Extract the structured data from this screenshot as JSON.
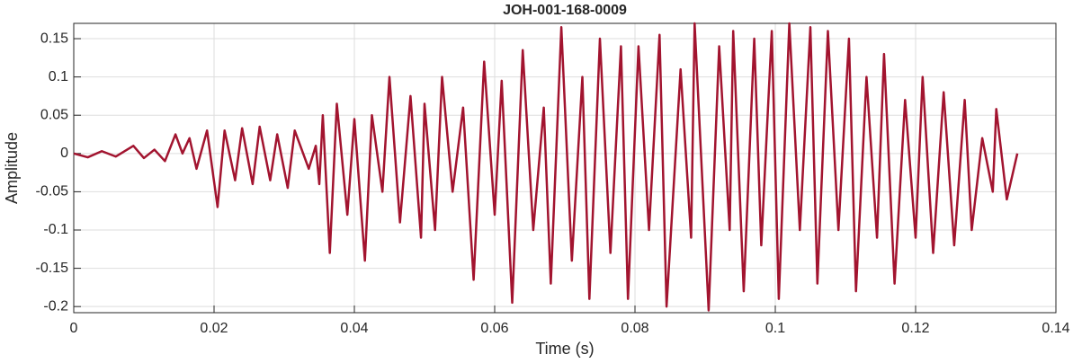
{
  "chart_data": {
    "type": "line",
    "title": "JOH-001-168-0009",
    "x_label": "Time (s)",
    "y_label": "Amplitude",
    "x": [
      0,
      0.002,
      0.004,
      0.006,
      0.0085,
      0.01,
      0.0115,
      0.013,
      0.0145,
      0.0155,
      0.0165,
      0.0175,
      0.019,
      0.0205,
      0.0215,
      0.023,
      0.024,
      0.0255,
      0.0265,
      0.028,
      0.029,
      0.0305,
      0.0315,
      0.0335,
      0.0345,
      0.035,
      0.0355,
      0.0365,
      0.0375,
      0.039,
      0.04,
      0.0415,
      0.0425,
      0.044,
      0.045,
      0.0465,
      0.048,
      0.0495,
      0.05,
      0.0515,
      0.0525,
      0.054,
      0.0555,
      0.057,
      0.0585,
      0.06,
      0.061,
      0.0625,
      0.064,
      0.0655,
      0.067,
      0.068,
      0.0695,
      0.071,
      0.0725,
      0.0735,
      0.075,
      0.0765,
      0.078,
      0.079,
      0.0805,
      0.082,
      0.0835,
      0.0845,
      0.0865,
      0.088,
      0.0885,
      0.0905,
      0.092,
      0.0935,
      0.094,
      0.0955,
      0.097,
      0.098,
      0.0995,
      0.1005,
      0.102,
      0.1035,
      0.105,
      0.106,
      0.1075,
      0.109,
      0.1105,
      0.1115,
      0.113,
      0.1145,
      0.1155,
      0.117,
      0.1185,
      0.12,
      0.121,
      0.1225,
      0.124,
      0.1255,
      0.127,
      0.128,
      0.1295,
      0.131,
      0.1315,
      0.133,
      0.134,
      0.1345
    ],
    "series": [
      {
        "name": "Amplitude",
        "color": "#a2142f",
        "values": [
          0,
          -0.005,
          0.003,
          -0.004,
          0.01,
          -0.006,
          0.005,
          -0.01,
          0.025,
          0,
          0.02,
          -0.02,
          0.03,
          -0.07,
          0.03,
          -0.035,
          0.033,
          -0.04,
          0.035,
          -0.035,
          0.025,
          -0.045,
          0.03,
          -0.02,
          0.01,
          -0.04,
          0.05,
          -0.13,
          0.065,
          -0.08,
          0.045,
          -0.14,
          0.05,
          -0.05,
          0.1,
          -0.09,
          0.075,
          -0.11,
          0.065,
          -0.1,
          0.1,
          -0.05,
          0.06,
          -0.165,
          0.12,
          -0.08,
          0.095,
          -0.195,
          0.135,
          -0.1,
          0.06,
          -0.17,
          0.165,
          -0.14,
          0.1,
          -0.19,
          0.15,
          -0.13,
          0.14,
          -0.19,
          0.14,
          -0.1,
          0.155,
          -0.2,
          0.11,
          -0.11,
          0.17,
          -0.205,
          0.14,
          -0.1,
          0.16,
          -0.18,
          0.15,
          -0.12,
          0.16,
          -0.19,
          0.17,
          -0.1,
          0.165,
          -0.17,
          0.16,
          -0.1,
          0.15,
          -0.18,
          0.1,
          -0.11,
          0.13,
          -0.17,
          0.07,
          -0.11,
          0.1,
          -0.13,
          0.08,
          -0.12,
          0.07,
          -0.1,
          0.02,
          -0.05,
          0.058,
          -0.06,
          -0.02,
          0
        ]
      }
    ],
    "xlim": [
      0,
      0.14
    ],
    "xticks": [
      0,
      0.02,
      0.04,
      0.06,
      0.08,
      0.1,
      0.12,
      0.14
    ],
    "ylim": [
      -0.208,
      0.17
    ],
    "yticks": [
      -0.2,
      -0.15,
      -0.1,
      -0.05,
      0,
      0.05,
      0.1,
      0.15
    ],
    "grid": true
  }
}
